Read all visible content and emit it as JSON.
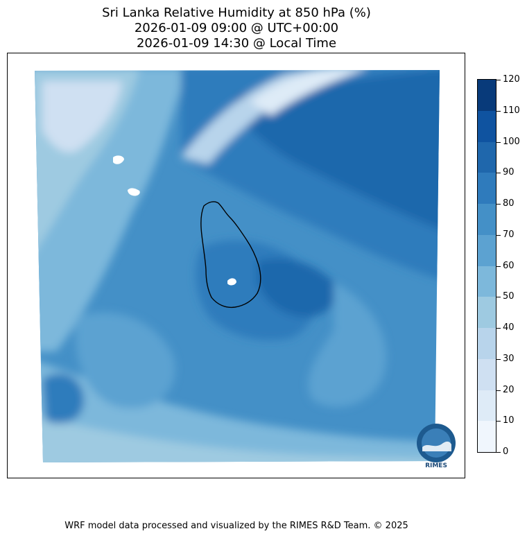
{
  "title": {
    "line1": "Sri Lanka Relative Humidity at 850 hPa (%)",
    "line2": "2026-01-09 09:00 @ UTC+00:00",
    "line3": "2026-01-09 14:30 @ Local Time"
  },
  "colorbar": {
    "ticks": [
      "0",
      "10",
      "20",
      "30",
      "40",
      "50",
      "60",
      "70",
      "80",
      "90",
      "100",
      "110",
      "120"
    ],
    "colors": [
      "#f0f6fd",
      "#deebf7",
      "#cfe0f2",
      "#b8d4eb",
      "#9ecae1",
      "#7db8db",
      "#5ca2d1",
      "#4490c7",
      "#2f7bbc",
      "#1f67ac",
      "#0f53a0",
      "#083a7a"
    ],
    "cmap": "Blues",
    "range": [
      0,
      120
    ]
  },
  "logo": {
    "text": "RIMES"
  },
  "footer": "WRF model data processed and visualized by the RIMES R&D Team. © 2025"
}
